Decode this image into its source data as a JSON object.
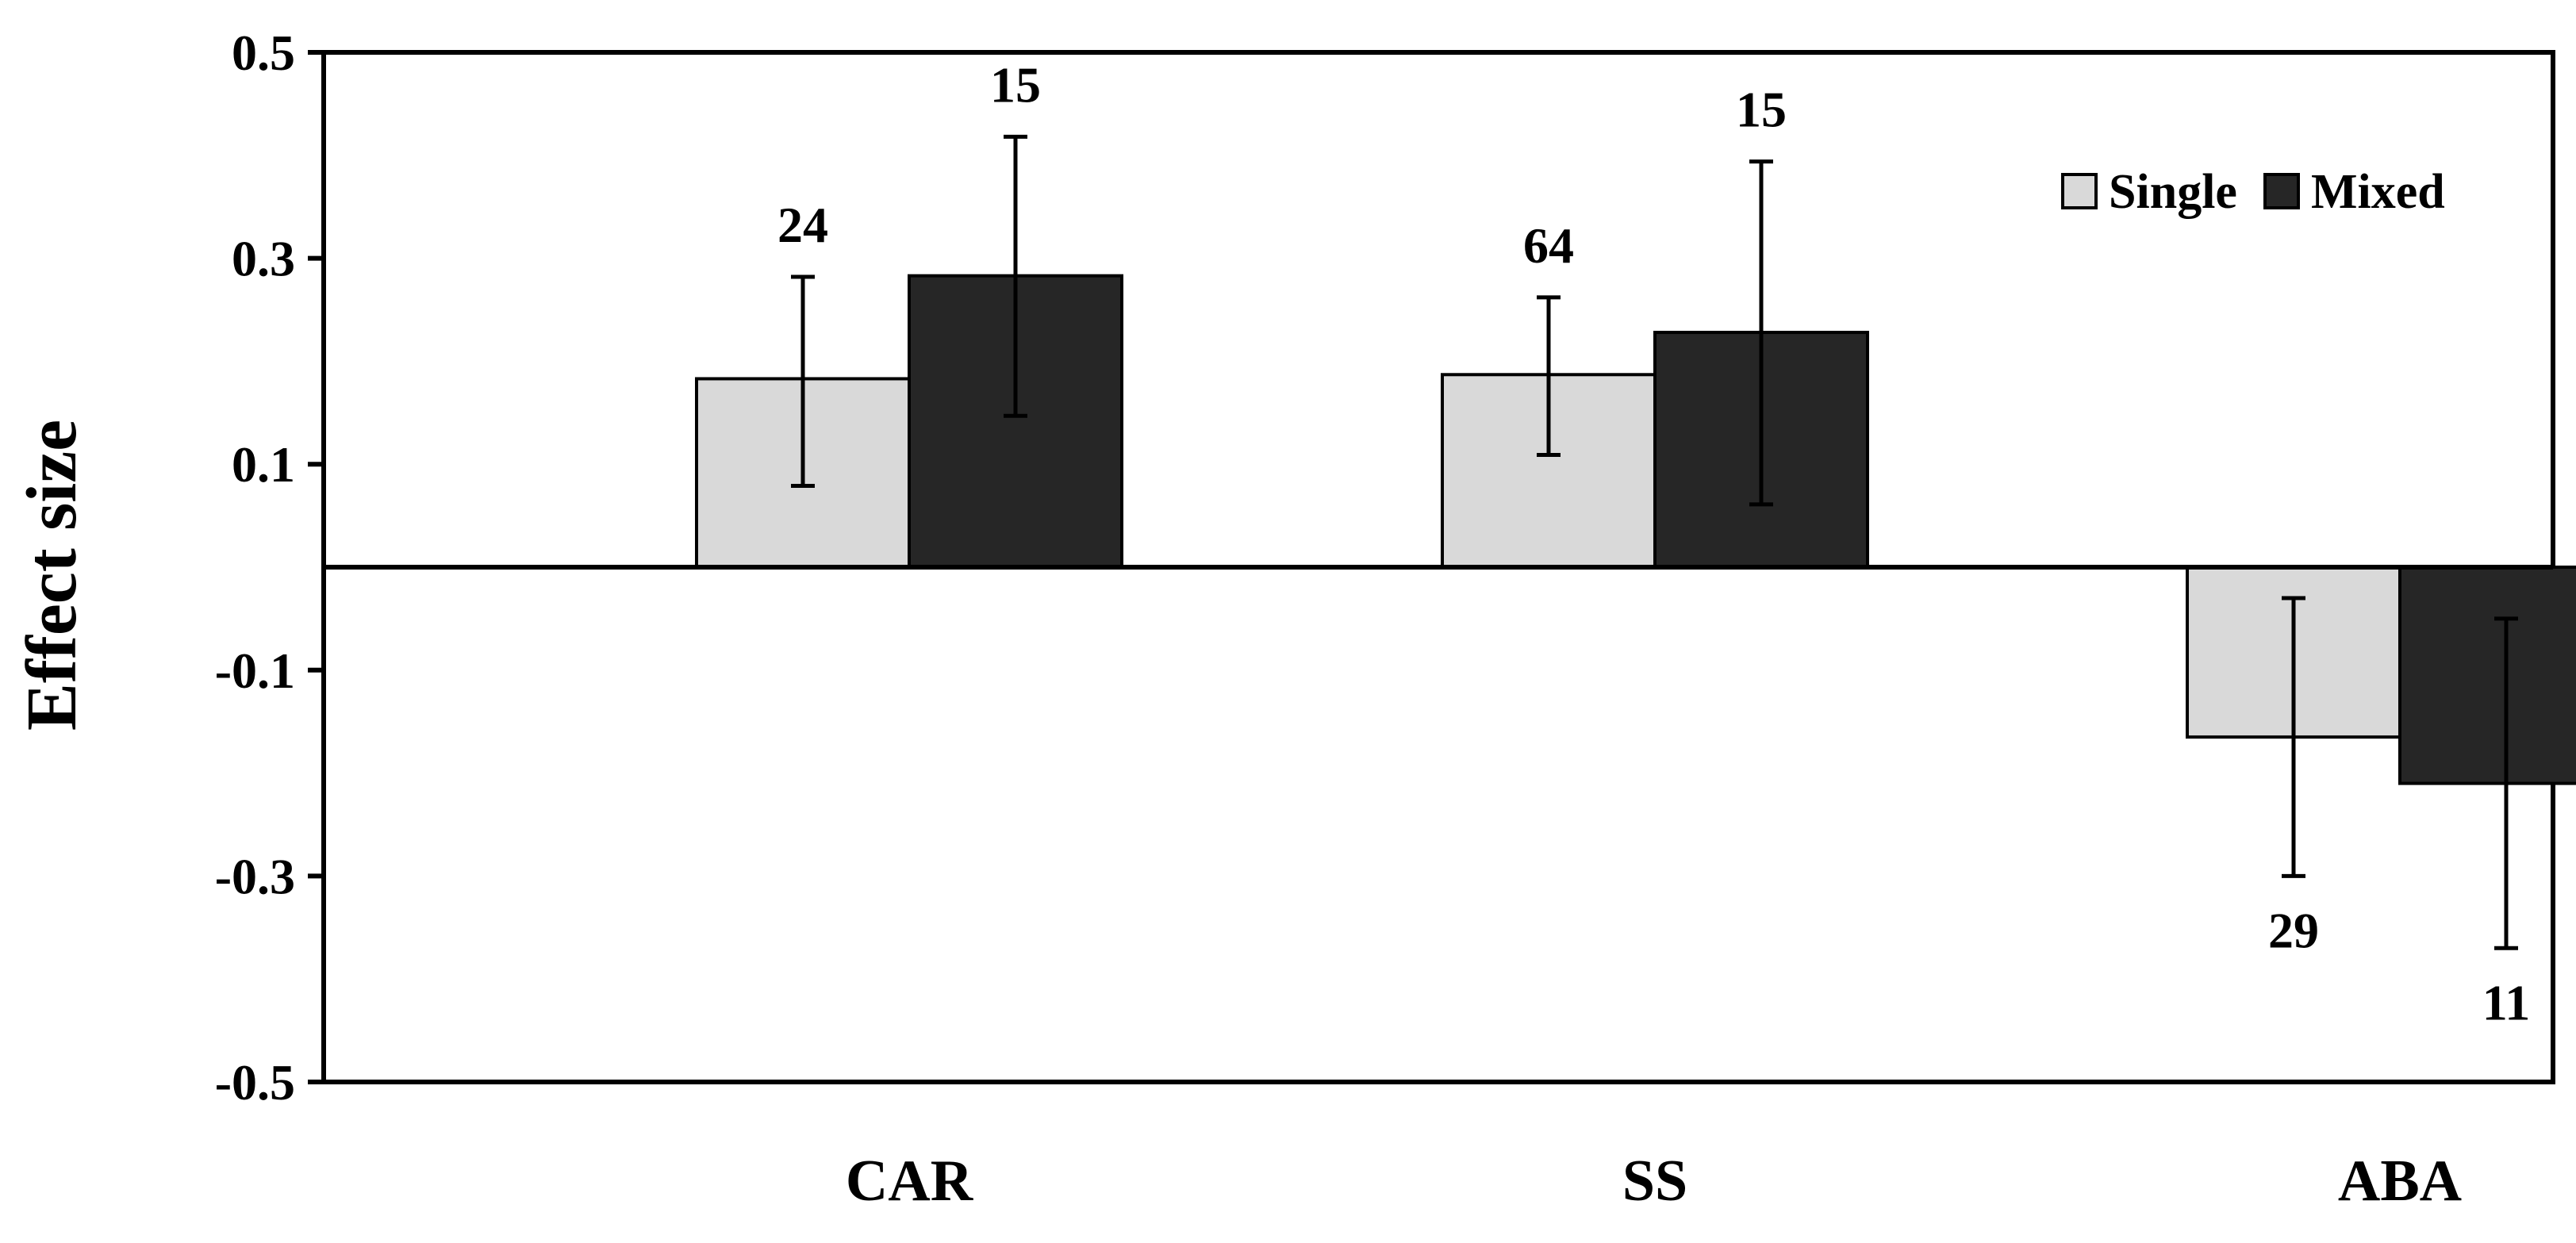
{
  "chart_data": {
    "type": "bar",
    "ylabel": "Effect size",
    "xlabel": "",
    "ylim": [
      -0.5,
      0.5
    ],
    "yticks": [
      0.5,
      0.3,
      0.1,
      -0.1,
      -0.3,
      -0.5
    ],
    "ytick_labels": [
      "0.5",
      "0.3",
      "0.1",
      "-0.1",
      "-0.3",
      "-0.5"
    ],
    "categories": [
      "CAR",
      "SS",
      "ABA"
    ],
    "legend_position": "top-right",
    "grid": false,
    "series": [
      {
        "name": "Single",
        "color": "#d9d9d9",
        "values": [
          0.183,
          0.187,
          -0.165
        ],
        "error_low": [
          0.079,
          0.109,
          -0.3
        ],
        "error_high": [
          0.282,
          0.262,
          -0.03
        ],
        "n": [
          "24",
          "64",
          "29"
        ]
      },
      {
        "name": "Mixed",
        "color": "#262626",
        "values": [
          0.283,
          0.228,
          -0.21
        ],
        "error_low": [
          0.147,
          0.061,
          -0.37
        ],
        "error_high": [
          0.418,
          0.394,
          -0.05
        ],
        "n": [
          "15",
          "15",
          "11"
        ]
      }
    ]
  }
}
